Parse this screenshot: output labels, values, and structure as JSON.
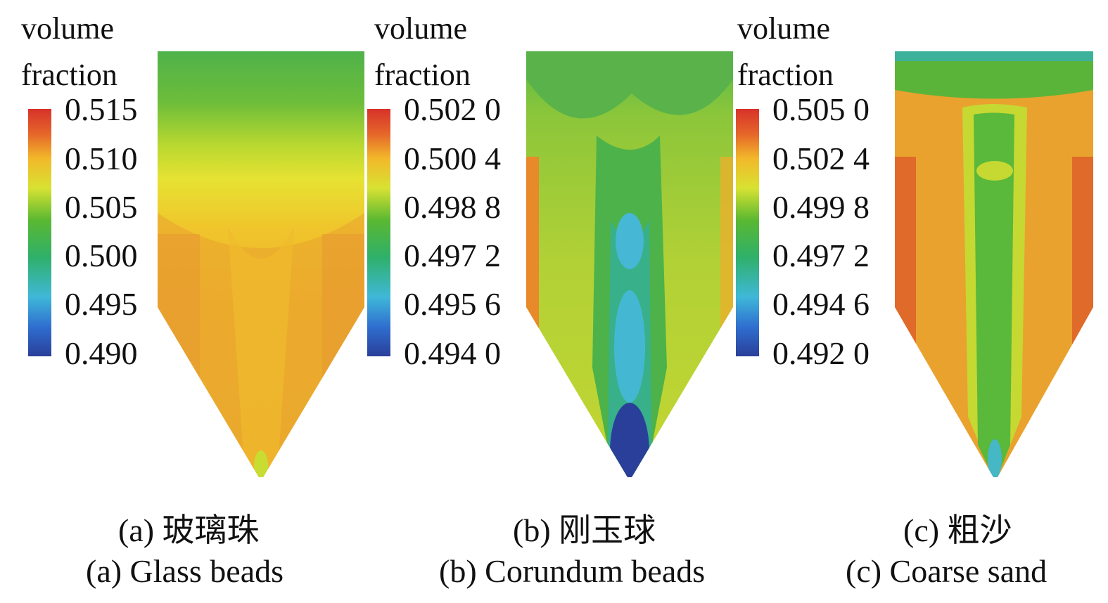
{
  "legend_title_line1": "volume",
  "legend_title_line2": "fraction",
  "panels": [
    {
      "ticks": [
        "0.515",
        "0.510",
        "0.505",
        "0.500",
        "0.495",
        "0.490"
      ],
      "caption_cn": "(a) 玻璃珠",
      "caption_en": "(a) Glass beads"
    },
    {
      "ticks": [
        "0.502 0",
        "0.500 4",
        "0.498 8",
        "0.497 2",
        "0.495 6",
        "0.494 0"
      ],
      "caption_cn": "(b) 刚玉球",
      "caption_en": "(b) Corundum beads"
    },
    {
      "ticks": [
        "0.505 0",
        "0.502 4",
        "0.499 8",
        "0.497 2",
        "0.494 6",
        "0.492 0"
      ],
      "caption_cn": "(c) 粗沙",
      "caption_en": "(c) Coarse sand"
    }
  ],
  "colors": {
    "red": "#d7322a",
    "orange": "#e8892a",
    "yellow": "#d8e232",
    "green": "#5ab832",
    "cyan": "#3fb8d8",
    "blue": "#2a3f9a"
  }
}
